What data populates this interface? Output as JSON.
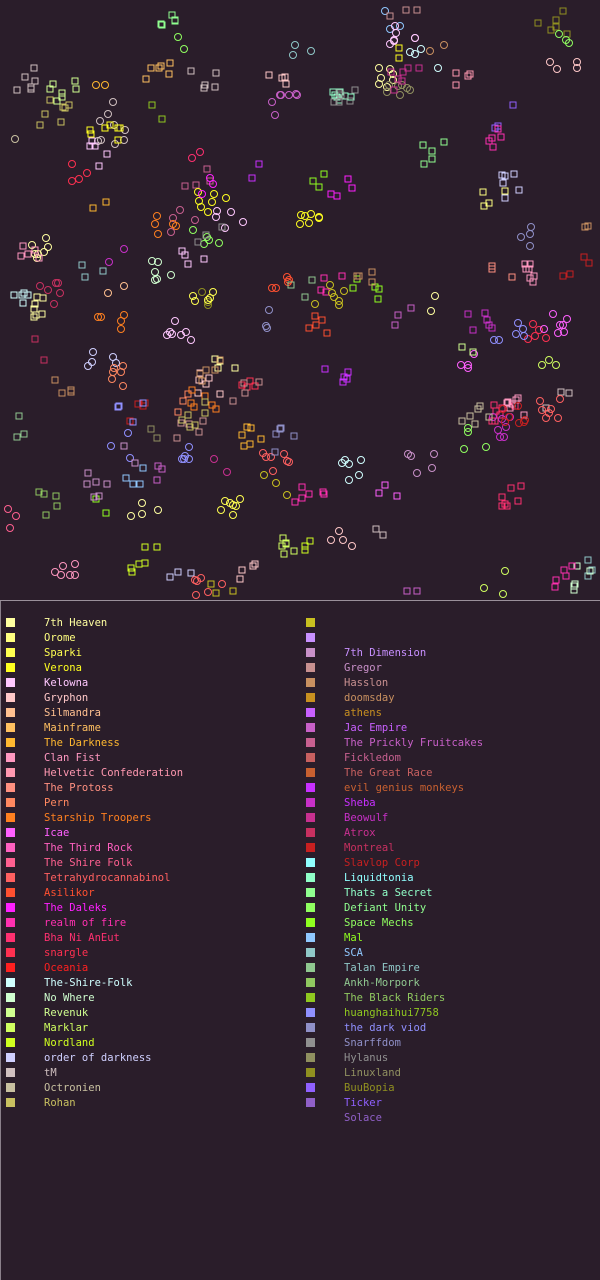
{
  "empires": [
    {
      "name": "7th Heaven",
      "color": "#ffffa0"
    },
    {
      "name": "Orome",
      "color": "#ffff80"
    },
    {
      "name": "Sparki",
      "color": "#ffff50"
    },
    {
      "name": "Verona",
      "color": "#ffff20"
    },
    {
      "name": "Kelowna",
      "color": "#ffc8ff"
    },
    {
      "name": "Gryphon",
      "color": "#ffc8c8"
    },
    {
      "name": "Silmandra",
      "color": "#ffc090"
    },
    {
      "name": "Mainframe",
      "color": "#ffc060"
    },
    {
      "name": "The Darkness",
      "color": "#ffb830"
    },
    {
      "name": "Clan Fist",
      "color": "#ff98c0"
    },
    {
      "name": "Helvetic Confederation",
      "color": "#ff98b0"
    },
    {
      "name": "The Protoss",
      "color": "#ff9080"
    },
    {
      "name": "Pern",
      "color": "#ff8860"
    },
    {
      "name": "Starship Troopers",
      "color": "#ff8020"
    },
    {
      "name": "Icae",
      "color": "#ff60ff"
    },
    {
      "name": "The Third Rock",
      "color": "#ff60c0"
    },
    {
      "name": "The Shire Folk",
      "color": "#ff6090"
    },
    {
      "name": "Tetrahydrocannabinol",
      "color": "#ff6060"
    },
    {
      "name": "Asilikor",
      "color": "#ff5030"
    },
    {
      "name": "The Daleks",
      "color": "#ff20ff"
    },
    {
      "name": "realm of fire",
      "color": "#ff30b0"
    },
    {
      "name": "Bha Ni AnEut",
      "color": "#ff3070"
    },
    {
      "name": "snargle",
      "color": "#ff3050"
    },
    {
      "name": "Oceania",
      "color": "#ff2020"
    },
    {
      "name": "The-Shire-Folk",
      "color": "#d0ffff"
    },
    {
      "name": "No Where",
      "color": "#d0ffd0"
    },
    {
      "name": "Revenuk",
      "color": "#d0ff90"
    },
    {
      "name": "Marklar",
      "color": "#d0ff60"
    },
    {
      "name": "Nordland",
      "color": "#d0ff20"
    },
    {
      "name": "order of darkness",
      "color": "#d0d0ff"
    },
    {
      "name": "tM",
      "color": "#d0c0c0"
    },
    {
      "name": "Octronien",
      "color": "#c8c0a0"
    },
    {
      "name": "Rohan",
      "color": "#c8c060"
    },
    {
      "name": "",
      "color": "#c8c020"
    },
    {
      "name": "7th Dimension",
      "color": "#c890ff"
    },
    {
      "name": "Gregor",
      "color": "#c890c8"
    },
    {
      "name": "Hasslon",
      "color": "#c89090"
    },
    {
      "name": "doomsday",
      "color": "#c89060"
    },
    {
      "name": "athens",
      "color": "#c89020"
    },
    {
      "name": "Jac Empire",
      "color": "#c860ff"
    },
    {
      "name": "The Prickly Fruitcakes",
      "color": "#c860c8"
    },
    {
      "name": "Fickledom",
      "color": "#c86090"
    },
    {
      "name": "The Great Race",
      "color": "#c86060"
    },
    {
      "name": "evil genius monkeys",
      "color": "#c86030"
    },
    {
      "name": "Sheba",
      "color": "#c830ff"
    },
    {
      "name": "Beowulf",
      "color": "#c830c8"
    },
    {
      "name": "Atrox",
      "color": "#c83090"
    },
    {
      "name": "Montreal",
      "color": "#c83060"
    },
    {
      "name": "Slavlop Corp",
      "color": "#c82020"
    },
    {
      "name": "Liquidtonia",
      "color": "#90ffff"
    },
    {
      "name": "Thats a Secret",
      "color": "#90ffc8"
    },
    {
      "name": "Defiant Unity",
      "color": "#90ff90"
    },
    {
      "name": "Space Mechs",
      "color": "#90ff60"
    },
    {
      "name": "Mal",
      "color": "#90ff20"
    },
    {
      "name": "SCA",
      "color": "#90c8ff"
    },
    {
      "name": "Talan Empire",
      "color": "#90c8c8"
    },
    {
      "name": "Ankh-Morpork",
      "color": "#90c890"
    },
    {
      "name": "The Black Riders",
      "color": "#90c860"
    },
    {
      "name": "huanghaihui7758",
      "color": "#90c820"
    },
    {
      "name": "the dark viod",
      "color": "#9090ff"
    },
    {
      "name": "Snarffdom",
      "color": "#9090c8"
    },
    {
      "name": "Hylanus",
      "color": "#909090"
    },
    {
      "name": "Linuxland",
      "color": "#909060"
    },
    {
      "name": "BuuBopia",
      "color": "#909020"
    },
    {
      "name": "Ticker",
      "color": "#9060ff"
    },
    {
      "name": "Solace",
      "color": "#9060c8"
    }
  ]
}
